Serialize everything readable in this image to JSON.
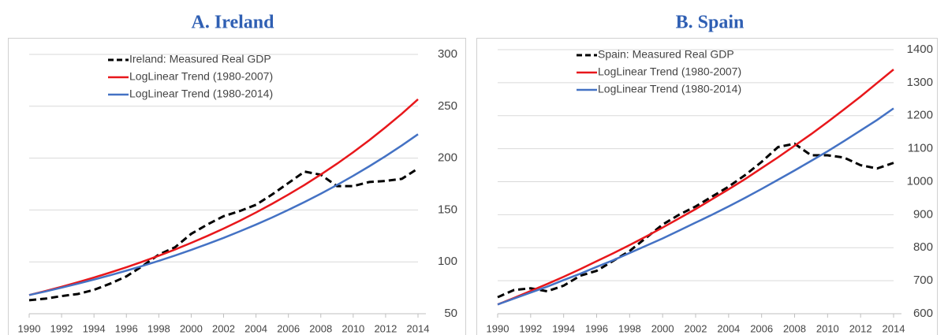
{
  "chart_data": [
    {
      "type": "line",
      "title": "A. Ireland",
      "x": [
        1990,
        1991,
        1992,
        1993,
        1994,
        1995,
        1996,
        1997,
        1998,
        1999,
        2000,
        2001,
        2002,
        2003,
        2004,
        2005,
        2006,
        2007,
        2008,
        2009,
        2010,
        2011,
        2012,
        2013,
        2014
      ],
      "xlim": [
        1990,
        2014
      ],
      "xticks": [
        1990,
        1992,
        1994,
        1996,
        1998,
        2000,
        2002,
        2004,
        2006,
        2008,
        2010,
        2012,
        2014
      ],
      "ylim": [
        50,
        300
      ],
      "yticks": [
        50,
        100,
        150,
        200,
        250,
        300
      ],
      "grid": true,
      "legend": "top-left",
      "series": [
        {
          "name": "Ireland: Measured Real GDP",
          "color": "#000000",
          "dashed": true,
          "values": [
            63,
            64.5,
            67,
            69,
            73,
            79,
            86,
            96,
            107,
            114,
            127,
            136,
            144,
            149,
            155,
            165,
            176,
            187,
            184,
            173,
            173,
            177,
            178,
            180,
            190
          ]
        },
        {
          "name": "LogLinear Trend (1980-2007)",
          "color": "#e8171b",
          "values": [
            68,
            71.9,
            76,
            80.3,
            84.9,
            89.7,
            94.8,
            100.2,
            105.9,
            111.9,
            118.3,
            125,
            132.1,
            139.6,
            147.6,
            156,
            164.9,
            174.2,
            184.2,
            194.6,
            205.7,
            217.4,
            229.8,
            242.8,
            256.7
          ]
        },
        {
          "name": "LogLinear Trend (1980-2014)",
          "color": "#4472c4",
          "values": [
            68,
            71.4,
            75.1,
            78.9,
            82.9,
            87.1,
            91.5,
            96.1,
            101,
            106.1,
            111.5,
            117.2,
            123.1,
            129.4,
            135.9,
            142.8,
            150.1,
            157.7,
            165.7,
            174.1,
            182.9,
            192.2,
            201.9,
            212.2,
            223
          ]
        }
      ]
    },
    {
      "type": "line",
      "title": "B. Spain",
      "x": [
        1990,
        1991,
        1992,
        1993,
        1994,
        1995,
        1996,
        1997,
        1998,
        1999,
        2000,
        2001,
        2002,
        2003,
        2004,
        2005,
        2006,
        2007,
        2008,
        2009,
        2010,
        2011,
        2012,
        2013,
        2014
      ],
      "xlim": [
        1990,
        2014
      ],
      "xticks": [
        1990,
        1992,
        1994,
        1996,
        1998,
        2000,
        2002,
        2004,
        2006,
        2008,
        2010,
        2012,
        2014
      ],
      "ylim": [
        600,
        1400
      ],
      "yticks": [
        600,
        700,
        800,
        900,
        1000,
        1100,
        1200,
        1300,
        1400
      ],
      "grid": true,
      "legend": "top-left",
      "series": [
        {
          "name": "Spain: Measured Real GDP",
          "color": "#000000",
          "dashed": true,
          "values": [
            650,
            672,
            677,
            668,
            685,
            715,
            730,
            760,
            790,
            830,
            870,
            900,
            925,
            955,
            985,
            1020,
            1060,
            1105,
            1115,
            1080,
            1080,
            1073,
            1050,
            1040,
            1057
          ]
        },
        {
          "name": "LogLinear Trend (1980-2007)",
          "color": "#e8171b",
          "values": [
            628,
            648,
            669,
            690,
            712,
            735,
            759,
            783,
            808,
            834,
            861,
            889,
            917,
            947,
            977,
            1008,
            1041,
            1074,
            1109,
            1144,
            1181,
            1219,
            1258,
            1299,
            1340
          ]
        },
        {
          "name": "LogLinear Trend (1980-2014)",
          "color": "#4472c4",
          "values": [
            628,
            646,
            664,
            682,
            702,
            721,
            742,
            762,
            784,
            806,
            828,
            852,
            876,
            900,
            925,
            951,
            978,
            1006,
            1034,
            1063,
            1092,
            1123,
            1155,
            1187,
            1222
          ]
        }
      ]
    }
  ]
}
